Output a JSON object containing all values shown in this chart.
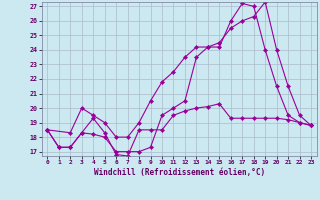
{
  "xlabel": "Windchill (Refroidissement éolien,°C)",
  "xlim": [
    -0.5,
    23.5
  ],
  "ylim": [
    16.7,
    27.3
  ],
  "xticks": [
    0,
    1,
    2,
    3,
    4,
    5,
    6,
    7,
    8,
    9,
    10,
    11,
    12,
    13,
    14,
    15,
    16,
    17,
    18,
    19,
    20,
    21,
    22,
    23
  ],
  "yticks": [
    17,
    18,
    19,
    20,
    21,
    22,
    23,
    24,
    25,
    26,
    27
  ],
  "bg_color": "#cce8f0",
  "line_color": "#990099",
  "grid_color": "#aabbcc",
  "lines": [
    {
      "x": [
        0,
        1,
        2,
        3,
        4,
        5,
        6,
        7,
        8,
        9,
        10,
        11,
        12,
        13,
        14,
        15,
        16,
        17,
        18,
        19,
        20,
        21,
        22,
        23
      ],
      "y": [
        18.5,
        17.3,
        17.3,
        18.3,
        18.2,
        18.0,
        17.0,
        17.0,
        17.0,
        17.3,
        19.5,
        20.0,
        20.5,
        23.5,
        24.2,
        24.2,
        26.0,
        27.2,
        27.0,
        24.0,
        21.5,
        19.5,
        19.0,
        18.8
      ]
    },
    {
      "x": [
        0,
        1,
        2,
        3,
        4,
        5,
        6,
        7,
        8,
        9,
        10,
        11,
        12,
        13,
        14,
        15,
        16,
        17,
        18,
        19,
        20,
        21,
        22,
        23
      ],
      "y": [
        18.5,
        17.3,
        17.3,
        18.3,
        19.3,
        18.3,
        16.8,
        16.7,
        18.5,
        18.5,
        18.5,
        19.5,
        19.8,
        20.0,
        20.1,
        20.3,
        19.3,
        19.3,
        19.3,
        19.3,
        19.3,
        19.2,
        19.0,
        18.8
      ]
    },
    {
      "x": [
        0,
        2,
        3,
        4,
        5,
        6,
        7,
        8,
        9,
        10,
        11,
        12,
        13,
        14,
        15,
        16,
        17,
        18,
        19,
        20,
        21,
        22,
        23
      ],
      "y": [
        18.5,
        18.3,
        20.0,
        19.5,
        19.0,
        18.0,
        18.0,
        19.0,
        20.5,
        21.8,
        22.5,
        23.5,
        24.2,
        24.2,
        24.5,
        25.5,
        26.0,
        26.3,
        27.3,
        24.0,
        21.5,
        19.5,
        18.8
      ]
    }
  ]
}
